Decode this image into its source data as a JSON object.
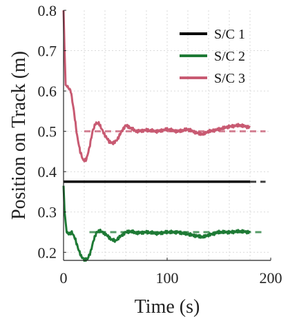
{
  "chart_data": {
    "type": "line",
    "xlabel": "Time (s)",
    "ylabel": "Position on Track (m)",
    "xlim": [
      0,
      200
    ],
    "ylim": [
      0.18,
      0.8
    ],
    "x_ticks": [
      0,
      100,
      200
    ],
    "x_tick_labels": [
      "0",
      "100",
      "200"
    ],
    "y_ticks": [
      0.2,
      0.3,
      0.4,
      0.5,
      0.6,
      0.7,
      0.8
    ],
    "y_tick_labels": [
      "0.2",
      "0.3",
      "0.4",
      "0.5",
      "0.6",
      "0.7",
      "0.8"
    ],
    "grid": true,
    "legend_position": "top-right",
    "series": [
      {
        "name": "S/C 1",
        "color": "#000000",
        "target": 0.375,
        "x": [
          0,
          180
        ],
        "y": [
          0.375,
          0.375
        ]
      },
      {
        "name": "S/C 2",
        "color": "#1e7a35",
        "target": 0.25,
        "x": [
          0,
          1,
          3,
          5,
          8,
          11,
          14,
          17,
          20,
          23,
          26,
          29,
          32,
          35,
          38,
          42,
          46,
          50,
          55,
          60,
          65,
          70,
          80,
          90,
          100,
          110,
          120,
          130,
          135,
          140,
          150,
          160,
          170,
          180
        ],
        "y": [
          0.365,
          0.3,
          0.25,
          0.245,
          0.25,
          0.235,
          0.21,
          0.19,
          0.182,
          0.183,
          0.2,
          0.23,
          0.25,
          0.253,
          0.25,
          0.242,
          0.232,
          0.228,
          0.24,
          0.25,
          0.252,
          0.248,
          0.25,
          0.247,
          0.25,
          0.25,
          0.245,
          0.24,
          0.238,
          0.243,
          0.25,
          0.25,
          0.252,
          0.25
        ]
      },
      {
        "name": "S/C 3",
        "color": "#c85a72",
        "target": 0.5,
        "x": [
          0,
          1,
          2,
          4,
          7,
          10,
          13,
          16,
          19,
          22,
          25,
          28,
          31,
          34,
          37,
          40,
          44,
          48,
          52,
          56,
          60,
          65,
          70,
          80,
          90,
          100,
          110,
          120,
          130,
          135,
          140,
          150,
          160,
          170,
          180
        ],
        "y": [
          0.8,
          0.7,
          0.615,
          0.61,
          0.6,
          0.55,
          0.49,
          0.45,
          0.428,
          0.43,
          0.46,
          0.5,
          0.52,
          0.52,
          0.505,
          0.49,
          0.475,
          0.47,
          0.48,
          0.5,
          0.515,
          0.508,
          0.5,
          0.503,
          0.5,
          0.505,
          0.5,
          0.505,
          0.495,
          0.493,
          0.5,
          0.505,
          0.512,
          0.515,
          0.51
        ]
      }
    ]
  }
}
